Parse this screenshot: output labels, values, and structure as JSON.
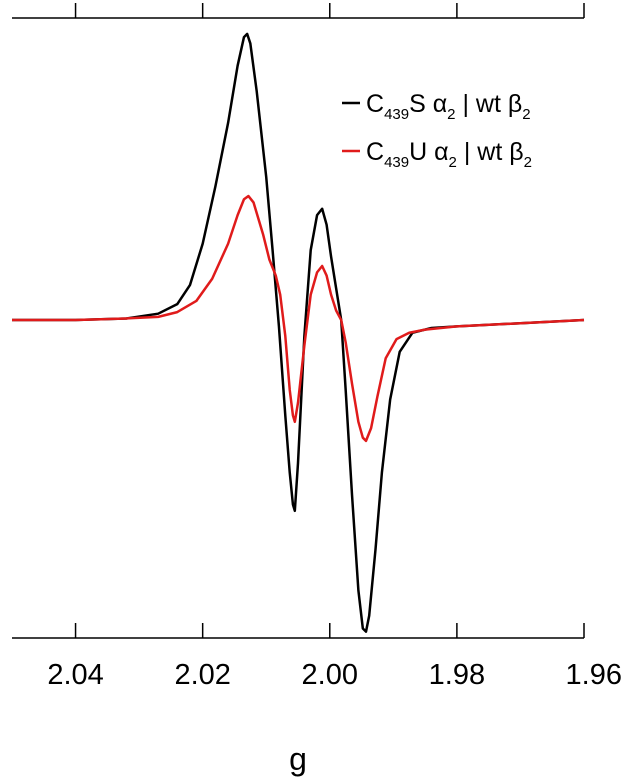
{
  "chart_data": {
    "type": "line",
    "title": "",
    "xlabel": "g",
    "ylabel": "",
    "xlim": [
      2.05,
      1.96
    ],
    "x_reversed": true,
    "ylim": [
      -1.0,
      0.95
    ],
    "grid": false,
    "legend_position": "top-right",
    "xticks": [
      2.04,
      2.02,
      2.0,
      1.98,
      1.96
    ],
    "xtick_labels": [
      "2.04",
      "2.02",
      "2.00",
      "1.98",
      "1.96"
    ],
    "series": [
      {
        "name": "C439S α2 | wt β2",
        "legend": {
          "pre": "C",
          "sub1": "439",
          "mid": "S α",
          "sub2": "2",
          "post": " | wt β",
          "sub3": "2"
        },
        "color": "#000000",
        "points": [
          [
            2.05,
            0.0
          ],
          [
            2.04,
            0.0
          ],
          [
            2.032,
            0.005
          ],
          [
            2.027,
            0.02
          ],
          [
            2.024,
            0.05
          ],
          [
            2.022,
            0.11
          ],
          [
            2.02,
            0.24
          ],
          [
            2.018,
            0.42
          ],
          [
            2.016,
            0.62
          ],
          [
            2.0145,
            0.8
          ],
          [
            2.0135,
            0.89
          ],
          [
            2.013,
            0.9
          ],
          [
            2.0125,
            0.87
          ],
          [
            2.0115,
            0.72
          ],
          [
            2.01,
            0.45
          ],
          [
            2.009,
            0.22
          ],
          [
            2.008,
            -0.02
          ],
          [
            2.007,
            -0.3
          ],
          [
            2.0063,
            -0.48
          ],
          [
            2.0058,
            -0.58
          ],
          [
            2.0055,
            -0.6
          ],
          [
            2.005,
            -0.45
          ],
          [
            2.004,
            -0.05
          ],
          [
            2.003,
            0.22
          ],
          [
            2.002,
            0.33
          ],
          [
            2.0012,
            0.35
          ],
          [
            2.0005,
            0.3
          ],
          [
            1.9998,
            0.2
          ],
          [
            1.999,
            0.1
          ],
          [
            1.9982,
            0.0
          ],
          [
            1.9975,
            -0.22
          ],
          [
            1.9965,
            -0.55
          ],
          [
            1.9955,
            -0.85
          ],
          [
            1.9948,
            -0.97
          ],
          [
            1.9943,
            -0.98
          ],
          [
            1.9938,
            -0.93
          ],
          [
            1.9928,
            -0.72
          ],
          [
            1.9918,
            -0.48
          ],
          [
            1.9905,
            -0.25
          ],
          [
            1.989,
            -0.1
          ],
          [
            1.987,
            -0.04
          ],
          [
            1.984,
            -0.025
          ],
          [
            1.98,
            -0.02
          ],
          [
            1.97,
            -0.01
          ],
          [
            1.96,
            0.0
          ]
        ]
      },
      {
        "name": "C439U α2 | wt β2",
        "legend": {
          "pre": "C",
          "sub1": "439",
          "mid": "U α",
          "sub2": "2",
          "post": " | wt β",
          "sub3": "2"
        },
        "color": "#e01b1b",
        "points": [
          [
            2.05,
            0.0
          ],
          [
            2.04,
            0.0
          ],
          [
            2.032,
            0.005
          ],
          [
            2.027,
            0.01
          ],
          [
            2.024,
            0.025
          ],
          [
            2.021,
            0.06
          ],
          [
            2.0185,
            0.13
          ],
          [
            2.016,
            0.24
          ],
          [
            2.0145,
            0.33
          ],
          [
            2.0135,
            0.38
          ],
          [
            2.0128,
            0.39
          ],
          [
            2.012,
            0.37
          ],
          [
            2.0105,
            0.27
          ],
          [
            2.0095,
            0.19
          ],
          [
            2.0085,
            0.14
          ],
          [
            2.0078,
            0.08
          ],
          [
            2.007,
            -0.05
          ],
          [
            2.0063,
            -0.22
          ],
          [
            2.0058,
            -0.3
          ],
          [
            2.0055,
            -0.32
          ],
          [
            2.005,
            -0.26
          ],
          [
            2.004,
            -0.08
          ],
          [
            2.003,
            0.08
          ],
          [
            2.002,
            0.15
          ],
          [
            2.0012,
            0.17
          ],
          [
            2.0005,
            0.14
          ],
          [
            1.9998,
            0.08
          ],
          [
            1.999,
            0.03
          ],
          [
            1.9982,
            0.0
          ],
          [
            1.9975,
            -0.07
          ],
          [
            1.9965,
            -0.2
          ],
          [
            1.9955,
            -0.32
          ],
          [
            1.9948,
            -0.37
          ],
          [
            1.9943,
            -0.38
          ],
          [
            1.9935,
            -0.34
          ],
          [
            1.9925,
            -0.24
          ],
          [
            1.9912,
            -0.12
          ],
          [
            1.9895,
            -0.06
          ],
          [
            1.9875,
            -0.04
          ],
          [
            1.985,
            -0.03
          ],
          [
            1.98,
            -0.02
          ],
          [
            1.97,
            -0.01
          ],
          [
            1.96,
            0.0
          ]
        ]
      }
    ]
  }
}
